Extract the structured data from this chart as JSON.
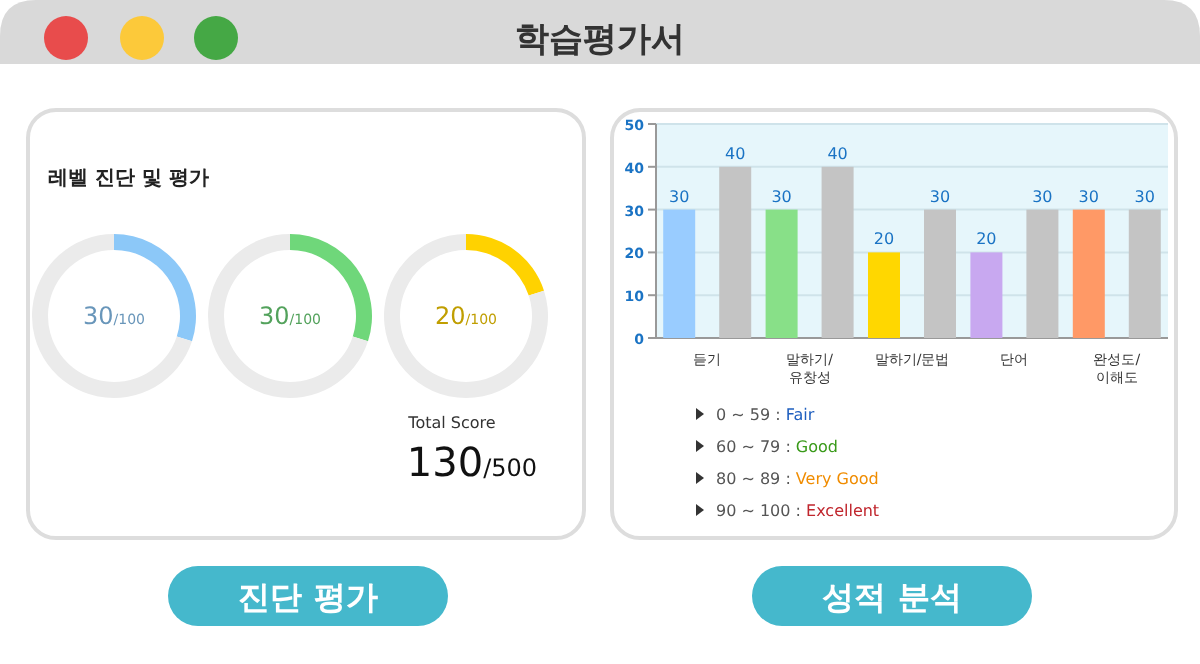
{
  "chart_data": [
    {
      "type": "other",
      "title": "학습평가서",
      "annotations": [
        "Total Score",
        "130/500",
        "진단 평가",
        "성적 분석"
      ]
    },
    {
      "type": "donut",
      "title": "레벨 진단 및 평가",
      "categories": [
        null,
        null
      ],
      "values": [
        30,
        70
      ],
      "colors": [
        "#8cc8f8",
        "#ebebeb"
      ],
      "annotations": [
        "30/100"
      ]
    },
    {
      "type": "donut",
      "categories": [
        null,
        null
      ],
      "values": [
        30,
        70
      ],
      "colors": [
        "#6fd77a",
        "#ebebeb"
      ],
      "annotations": [
        "30/100"
      ]
    },
    {
      "type": "donut",
      "categories": [
        null,
        null
      ],
      "values": [
        20,
        80
      ],
      "colors": [
        "#ffd200",
        "#ebebeb"
      ],
      "annotations": [
        "20/100"
      ]
    },
    {
      "type": "bar",
      "categories": [
        "듣기",
        "말하기/유창성",
        "말하기/문법",
        "단어",
        "완성도/이해도"
      ],
      "series": [
        {
          "colors": [
            "#99ccff",
            "#88e088",
            "#ffd700",
            "#c8a8f0",
            "#ff9966"
          ],
          "values": [
            30,
            30,
            20,
            20,
            30
          ]
        },
        {
          "color": "#c4c4c4",
          "values": [
            40,
            40,
            30,
            30,
            30
          ]
        }
      ],
      "ylim": [
        0,
        50
      ],
      "yticks": [
        0,
        10,
        20,
        30,
        40,
        50
      ],
      "grid": "y",
      "data_labels": true,
      "annotations": [
        "0 ~ 59 : Fair",
        "60 ~ 79 : Good",
        "80 ~ 89 : Very Good",
        "90 ~ 100 : Excellent"
      ]
    }
  ]
}
